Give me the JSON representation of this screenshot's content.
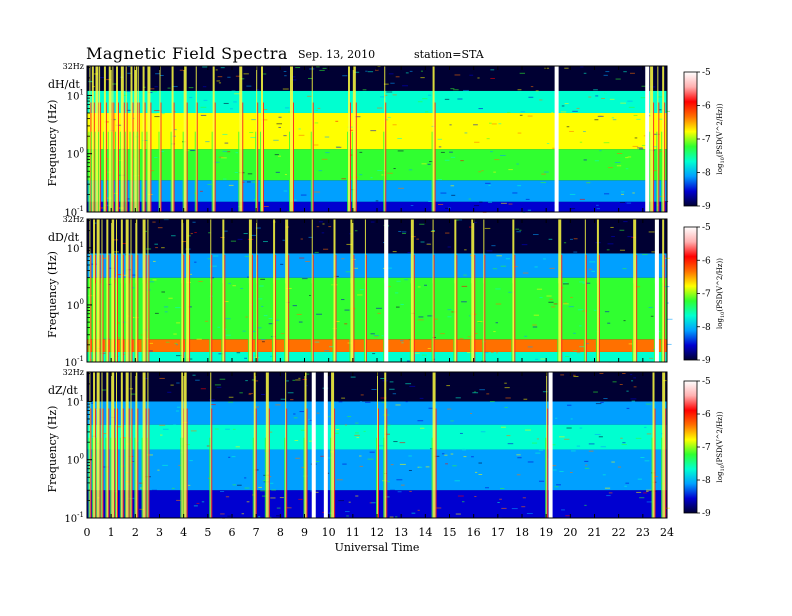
{
  "header": {
    "title": "Magnetic  Field  Spectra",
    "date": "Sep. 13, 2010",
    "station": "station=STA"
  },
  "chart_data": {
    "type": "heatmap",
    "x": {
      "label": "Universal Time",
      "ticks": [
        "0",
        "1",
        "2",
        "3",
        "4",
        "5",
        "6",
        "7",
        "8",
        "9",
        "10",
        "11",
        "12",
        "13",
        "14",
        "15",
        "16",
        "17",
        "18",
        "19",
        "20",
        "21",
        "22",
        "23",
        "24"
      ],
      "range": [
        0,
        24
      ]
    },
    "y": {
      "label": "Frequency (Hz)",
      "scale": "log",
      "range_hz": [
        0.1,
        32
      ],
      "ticks": [
        {
          "base": "10",
          "exp": "-1",
          "value": 0.1
        },
        {
          "base": "10",
          "exp": "0",
          "value": 1
        },
        {
          "base": "10",
          "exp": "1",
          "value": 10
        }
      ],
      "top_label": "32Hz"
    },
    "colorbar": {
      "label_prefix": "log",
      "label_sub": "10",
      "label_rest": "(PSD(V^2/Hz))",
      "range": [
        -9,
        -5
      ],
      "ticks": [
        "-5",
        "-6",
        "-7",
        "-8",
        "-9"
      ],
      "colors": [
        "#000033",
        "#0000d0",
        "#00a0ff",
        "#00ffd0",
        "#30ff30",
        "#ffff00",
        "#ff7000",
        "#ff0000",
        "#ffb0b0",
        "#ffffff"
      ]
    },
    "panels": [
      {
        "name": "dH/dt",
        "bands": [
          {
            "f_from": 0.1,
            "f_to": 0.15,
            "level": -8.6
          },
          {
            "f_from": 0.15,
            "f_to": 0.35,
            "level": -8.2
          },
          {
            "f_from": 0.35,
            "f_to": 1.2,
            "level": -7.4
          },
          {
            "f_from": 1.2,
            "f_to": 5,
            "level": -6.8
          },
          {
            "f_from": 5,
            "f_to": 12,
            "level": -7.5
          },
          {
            "f_from": 12,
            "f_to": 20,
            "level": -8.8
          },
          {
            "f_from": 20,
            "f_to": 32,
            "level": -9
          }
        ],
        "spikes_ut": [
          0.1,
          0.2,
          0.35,
          0.5,
          0.7,
          0.9,
          1.05,
          1.2,
          1.4,
          1.6,
          1.8,
          1.95,
          2.1,
          2.3,
          2.5,
          3.0,
          3.5,
          4.0,
          4.5,
          5.2,
          6.3,
          7.0,
          7.2,
          8.4,
          9.3,
          10.8,
          11.0,
          12.3,
          14.3,
          23.3,
          23.6,
          23.8
        ],
        "gaps_ut": [
          19.35,
          23.1
        ]
      },
      {
        "name": "dD/dt",
        "bands": [
          {
            "f_from": 0.1,
            "f_to": 0.15,
            "level": -7.8
          },
          {
            "f_from": 0.15,
            "f_to": 0.25,
            "level": -6.2
          },
          {
            "f_from": 0.25,
            "f_to": 3,
            "level": -7.4
          },
          {
            "f_from": 3,
            "f_to": 8,
            "level": -8.0
          },
          {
            "f_from": 8,
            "f_to": 18,
            "level": -8.8
          },
          {
            "f_from": 18,
            "f_to": 32,
            "level": -9
          }
        ],
        "spikes_ut": [
          0.1,
          0.25,
          0.4,
          0.6,
          0.8,
          1.0,
          1.2,
          1.4,
          1.6,
          1.8,
          2.0,
          2.3,
          2.5,
          3.9,
          4.1,
          5.1,
          5.6,
          6.7,
          7.0,
          7.7,
          8.2,
          9.3,
          10.2,
          10.9,
          11.5,
          12.3,
          13.4,
          14.3,
          15.2,
          15.9,
          16.4,
          17.6,
          19.5,
          20.6,
          21.1,
          22.6,
          23.5,
          23.8
        ],
        "gaps_ut": [
          12.3,
          23.5
        ]
      },
      {
        "name": "dZ/dt",
        "bands": [
          {
            "f_from": 0.1,
            "f_to": 0.3,
            "level": -8.7
          },
          {
            "f_from": 0.3,
            "f_to": 1.5,
            "level": -8.2
          },
          {
            "f_from": 1.5,
            "f_to": 4,
            "level": -7.5
          },
          {
            "f_from": 4,
            "f_to": 10,
            "level": -8.3
          },
          {
            "f_from": 10,
            "f_to": 18,
            "level": -8.9
          },
          {
            "f_from": 18,
            "f_to": 32,
            "level": -9
          }
        ],
        "spikes_ut": [
          0.1,
          0.25,
          0.4,
          0.6,
          0.8,
          1.0,
          1.2,
          1.4,
          1.6,
          1.8,
          2.0,
          2.3,
          2.5,
          3.9,
          4.0,
          5.1,
          6.9,
          7.4,
          8.2,
          9.0,
          10.1,
          12.0,
          12.3,
          14.3,
          19.0,
          23.4,
          23.8
        ],
        "gaps_ut": [
          9.3,
          9.8,
          19.1
        ]
      }
    ]
  }
}
